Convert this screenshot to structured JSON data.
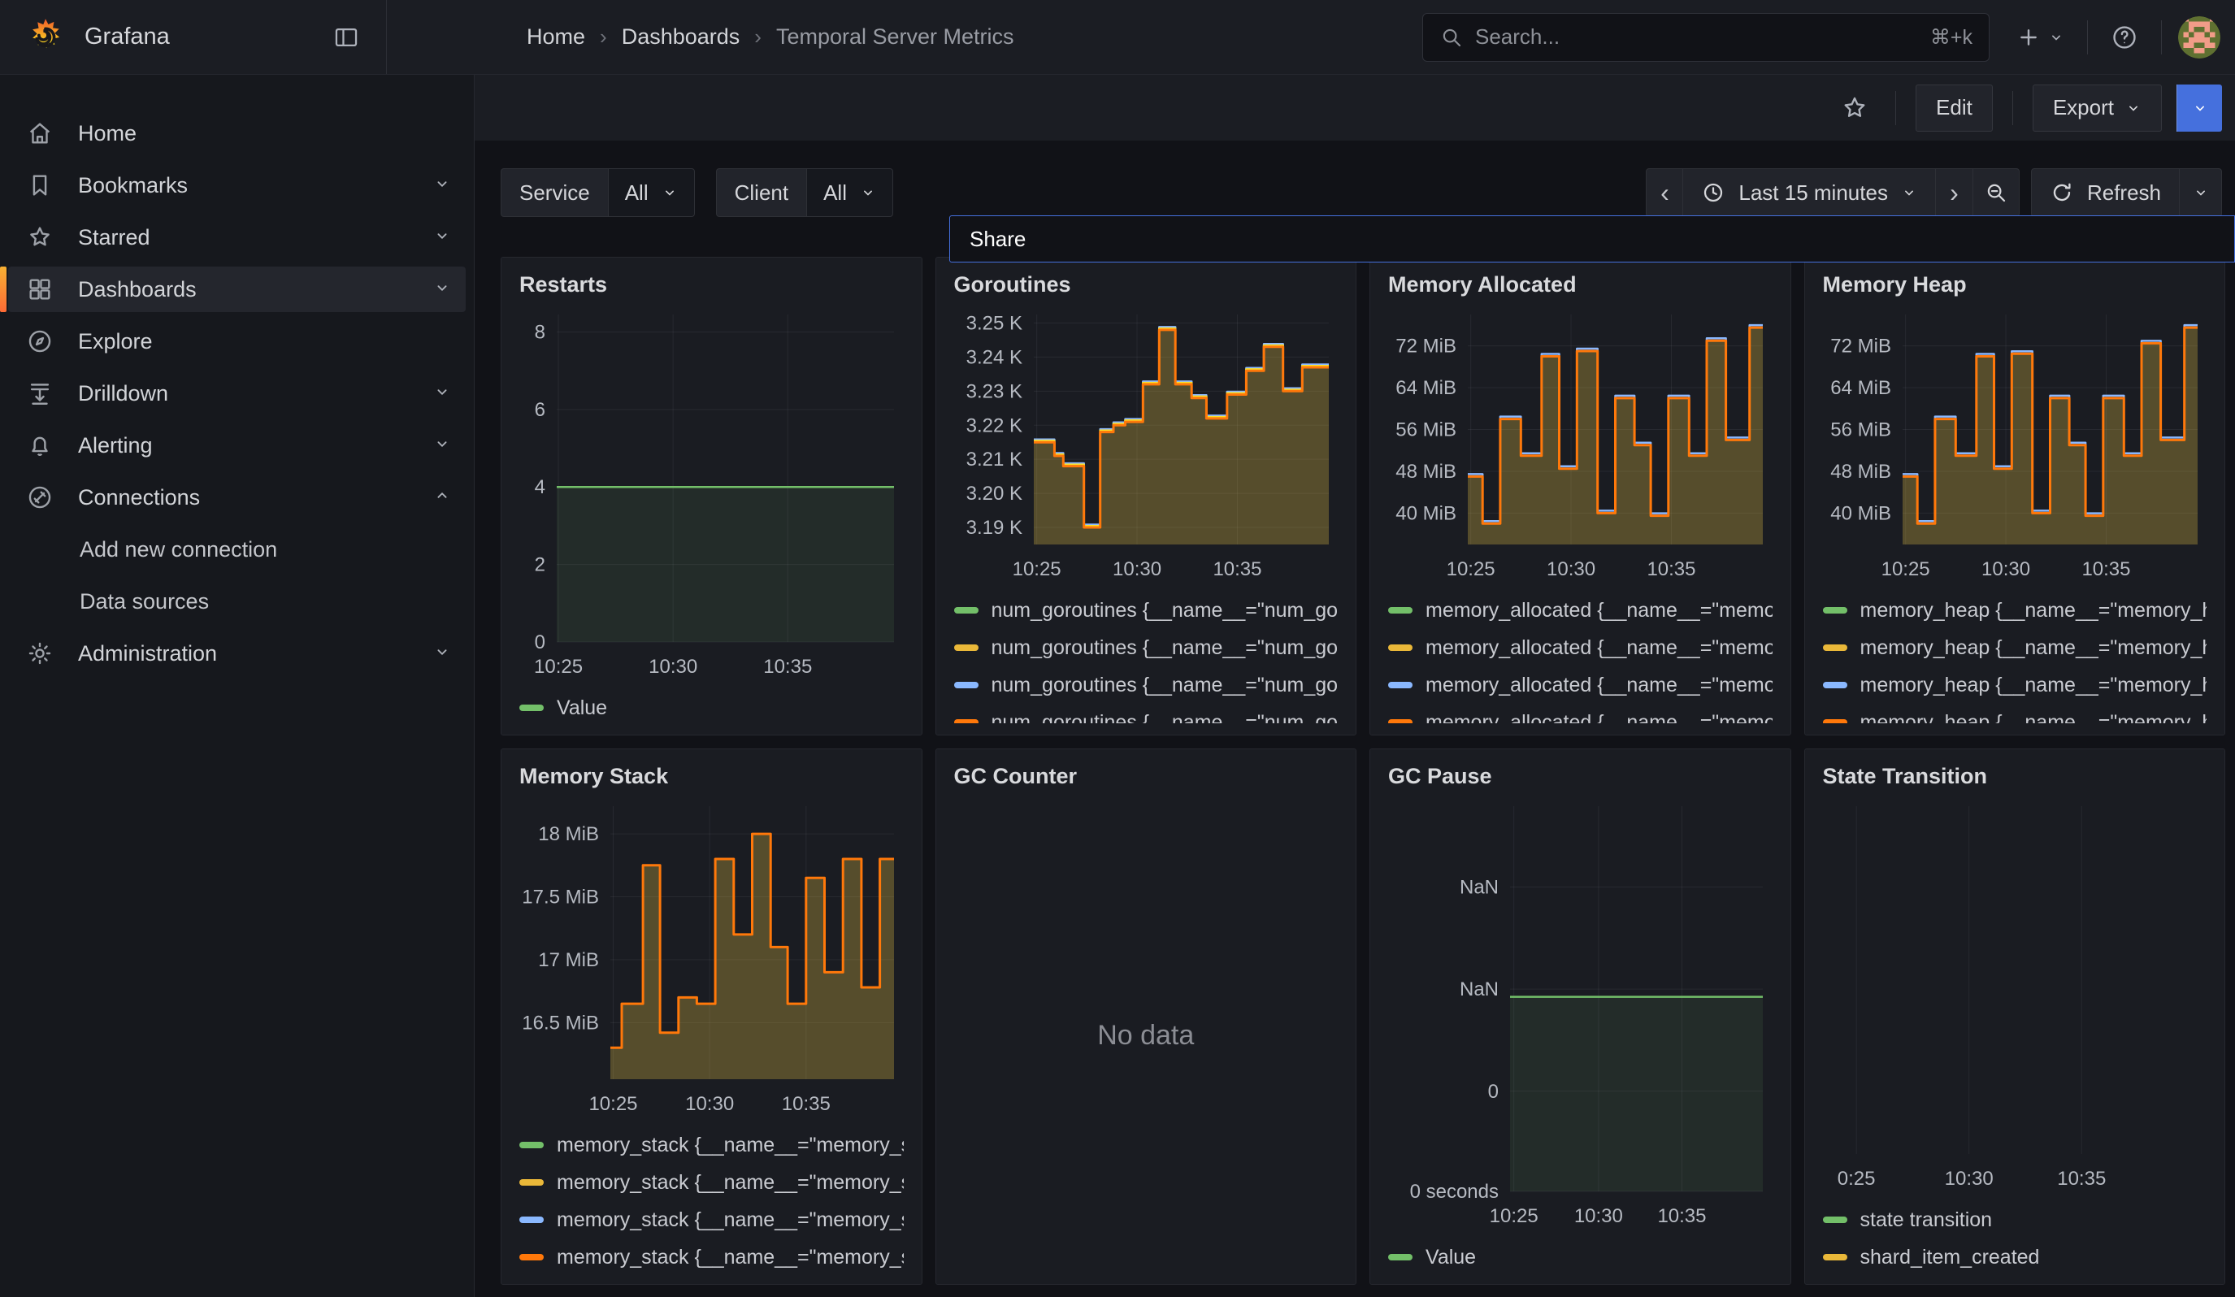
{
  "topbar": {
    "brand": "Grafana",
    "breadcrumb": {
      "items": [
        "Home",
        "Dashboards",
        "Temporal Server Metrics"
      ],
      "separator": "›"
    },
    "search": {
      "placeholder": "Search...",
      "shortcut": "⌘+k"
    }
  },
  "subheader": {
    "edit_label": "Edit",
    "export_label": "Export",
    "share_label": "Share"
  },
  "sidebar": {
    "items": [
      {
        "label": "Home",
        "icon": "home-icon",
        "chevron": null
      },
      {
        "label": "Bookmarks",
        "icon": "bookmark-icon",
        "chevron": "down"
      },
      {
        "label": "Starred",
        "icon": "star-icon",
        "chevron": "down"
      },
      {
        "label": "Dashboards",
        "icon": "grid-icon",
        "chevron": "down",
        "active": true
      },
      {
        "label": "Explore",
        "icon": "compass-icon",
        "chevron": null
      },
      {
        "label": "Drilldown",
        "icon": "drilldown-icon",
        "chevron": "down"
      },
      {
        "label": "Alerting",
        "icon": "bell-icon",
        "chevron": "down"
      },
      {
        "label": "Connections",
        "icon": "plug-icon",
        "chevron": "up"
      },
      {
        "label": "Add new connection",
        "sub": true
      },
      {
        "label": "Data sources",
        "sub": true
      },
      {
        "label": "Administration",
        "icon": "gear-icon",
        "chevron": "down"
      }
    ]
  },
  "filters": [
    {
      "label": "Service",
      "value": "All"
    },
    {
      "label": "Client",
      "value": "All"
    }
  ],
  "timebar": {
    "range_label": "Last 15 minutes",
    "refresh_label": "Refresh"
  },
  "colors": {
    "green": "#73BF69",
    "yellow": "#EAB839",
    "blue": "#8AB8FF",
    "orange": "#FF780A",
    "accent_blue": "#4570dd",
    "area_fill": "rgba(224,192,68,0.30)"
  },
  "panels": [
    {
      "title": "Restarts",
      "legend": [
        {
          "color": "#73BF69",
          "label": "Value"
        }
      ],
      "chart": {
        "type": "line",
        "ml": 46,
        "ymin": 0,
        "ymax": 8.45,
        "yticks": [
          {
            "v": 8,
            "label": "8"
          },
          {
            "v": 6,
            "label": "6"
          },
          {
            "v": 4,
            "label": "4"
          },
          {
            "v": 2,
            "label": "2"
          },
          {
            "v": 0,
            "label": "0"
          }
        ],
        "xticks": [
          {
            "f": 0.005,
            "label": "10:25"
          },
          {
            "f": 0.345,
            "label": "10:30"
          },
          {
            "f": 0.685,
            "label": "10:35"
          }
        ],
        "series": {
          "x": [
            0,
            1
          ],
          "values": [
            4
          ]
        },
        "fill": "rgba(115,191,105,0.10)",
        "layers": [
          {
            "color": "#73BF69",
            "dy": 0,
            "w": 2.5
          }
        ]
      }
    },
    {
      "title": "Goroutines",
      "legend": [
        {
          "color": "#73BF69",
          "label": "num_goroutines {__name__=\"num_go"
        },
        {
          "color": "#EAB839",
          "label": "num_goroutines {__name__=\"num_go"
        },
        {
          "color": "#8AB8FF",
          "label": "num_goroutines {__name__=\"num_go"
        },
        {
          "color": "#FF780A",
          "label": "num_goroutines {__name__=\"num_go"
        }
      ],
      "chart": {
        "type": "area-step",
        "ml": 98,
        "ymin": 3185,
        "ymax": 3252.5,
        "yticks": [
          {
            "v": 3250,
            "label": "3.25 K"
          },
          {
            "v": 3240,
            "label": "3.24 K"
          },
          {
            "v": 3230,
            "label": "3.23 K"
          },
          {
            "v": 3220,
            "label": "3.22 K"
          },
          {
            "v": 3210,
            "label": "3.21 K"
          },
          {
            "v": 3200,
            "label": "3.20 K"
          },
          {
            "v": 3190,
            "label": "3.19 K"
          }
        ],
        "xticks": [
          {
            "f": 0.01,
            "label": "10:25"
          },
          {
            "f": 0.35,
            "label": "10:30"
          },
          {
            "f": 0.69,
            "label": "10:35"
          }
        ],
        "series": {
          "x": [
            0,
            0.07,
            0.1,
            0.17,
            0.225,
            0.27,
            0.31,
            0.37,
            0.425,
            0.48,
            0.535,
            0.585,
            0.655,
            0.72,
            0.78,
            0.845,
            0.91,
            1
          ],
          "values": [
            3215,
            3211,
            3208,
            3190,
            3218,
            3220,
            3221,
            3232,
            3248,
            3232,
            3228,
            3222,
            3229,
            3236,
            3243,
            3230,
            3237
          ]
        },
        "fill": "rgba(224,192,68,0.30)",
        "layers": [
          {
            "color": "#8AB8FF",
            "dy": -3.5,
            "w": 2.5
          },
          {
            "color": "#FADE2A",
            "dy": -1.8,
            "w": 2.5
          },
          {
            "color": "#FF780A",
            "dy": 0,
            "w": 3
          }
        ]
      }
    },
    {
      "title": "Memory Allocated",
      "legend": [
        {
          "color": "#73BF69",
          "label": "memory_allocated {__name__=\"memo"
        },
        {
          "color": "#EAB839",
          "label": "memory_allocated {__name__=\"memo"
        },
        {
          "color": "#8AB8FF",
          "label": "memory_allocated {__name__=\"memo"
        },
        {
          "color": "#FF780A",
          "label": "memory_allocated {__name__=\"memo"
        }
      ],
      "chart": {
        "type": "area-step",
        "ml": 98,
        "ymin": 34,
        "ymax": 78,
        "yticks": [
          {
            "v": 72,
            "label": "72 MiB"
          },
          {
            "v": 64,
            "label": "64 MiB"
          },
          {
            "v": 56,
            "label": "56 MiB"
          },
          {
            "v": 48,
            "label": "48 MiB"
          },
          {
            "v": 40,
            "label": "40 MiB"
          }
        ],
        "xticks": [
          {
            "f": 0.01,
            "label": "10:25"
          },
          {
            "f": 0.35,
            "label": "10:30"
          },
          {
            "f": 0.69,
            "label": "10:35"
          }
        ],
        "series": {
          "x": [
            0,
            0.05,
            0.11,
            0.18,
            0.25,
            0.31,
            0.37,
            0.44,
            0.5,
            0.565,
            0.62,
            0.68,
            0.75,
            0.81,
            0.875,
            0.955,
            1
          ],
          "values": [
            47,
            38,
            58,
            51,
            70,
            48.5,
            71,
            40,
            62,
            53,
            39.5,
            62,
            51,
            73,
            54,
            75.5
          ]
        },
        "fill": "rgba(224,192,68,0.30)",
        "layers": [
          {
            "color": "#8AB8FF",
            "dy": -3,
            "w": 2.5
          },
          {
            "color": "#FF780A",
            "dy": 0,
            "w": 3
          }
        ]
      }
    },
    {
      "title": "Memory Heap",
      "legend": [
        {
          "color": "#73BF69",
          "label": "memory_heap {__name__=\"memory_h"
        },
        {
          "color": "#EAB839",
          "label": "memory_heap {__name__=\"memory_h"
        },
        {
          "color": "#8AB8FF",
          "label": "memory_heap {__name__=\"memory_h"
        },
        {
          "color": "#FF780A",
          "label": "memory_heap {__name__=\"memory_h"
        }
      ],
      "chart": {
        "type": "area-step",
        "ml": 98,
        "ymin": 34,
        "ymax": 78,
        "yticks": [
          {
            "v": 72,
            "label": "72 MiB"
          },
          {
            "v": 64,
            "label": "64 MiB"
          },
          {
            "v": 56,
            "label": "56 MiB"
          },
          {
            "v": 48,
            "label": "48 MiB"
          },
          {
            "v": 40,
            "label": "40 MiB"
          }
        ],
        "xticks": [
          {
            "f": 0.01,
            "label": "10:25"
          },
          {
            "f": 0.35,
            "label": "10:30"
          },
          {
            "f": 0.69,
            "label": "10:35"
          }
        ],
        "series": {
          "x": [
            0,
            0.05,
            0.11,
            0.18,
            0.25,
            0.31,
            0.37,
            0.44,
            0.5,
            0.565,
            0.62,
            0.68,
            0.75,
            0.81,
            0.875,
            0.955,
            1
          ],
          "values": [
            47,
            38,
            58,
            51,
            70,
            48.5,
            70.5,
            40,
            62,
            53,
            39.5,
            62,
            51,
            72.5,
            54,
            75.5
          ]
        },
        "fill": "rgba(224,192,68,0.30)",
        "layers": [
          {
            "color": "#8AB8FF",
            "dy": -3,
            "w": 2.5
          },
          {
            "color": "#FF780A",
            "dy": 0,
            "w": 3
          }
        ]
      }
    },
    {
      "title": "Memory Stack",
      "legend": [
        {
          "color": "#73BF69",
          "label": "memory_stack {__name__=\"memory_s"
        },
        {
          "color": "#EAB839",
          "label": "memory_stack {__name__=\"memory_s"
        },
        {
          "color": "#8AB8FF",
          "label": "memory_stack {__name__=\"memory_s"
        },
        {
          "color": "#FF780A",
          "label": "memory_stack {__name__=\"memory_s"
        }
      ],
      "chart": {
        "type": "area-step",
        "ml": 112,
        "ymin": 16.05,
        "ymax": 18.22,
        "yticks": [
          {
            "v": 18,
            "label": "18 MiB"
          },
          {
            "v": 17.5,
            "label": "17.5 MiB"
          },
          {
            "v": 17,
            "label": "17 MiB"
          },
          {
            "v": 16.5,
            "label": "16.5 MiB"
          }
        ],
        "xticks": [
          {
            "f": 0.01,
            "label": "10:25"
          },
          {
            "f": 0.35,
            "label": "10:30"
          },
          {
            "f": 0.69,
            "label": "10:35"
          }
        ],
        "series": {
          "x": [
            0,
            0.04,
            0.115,
            0.175,
            0.24,
            0.305,
            0.37,
            0.435,
            0.5,
            0.565,
            0.625,
            0.69,
            0.755,
            0.82,
            0.885,
            0.95,
            1
          ],
          "values": [
            16.3,
            16.65,
            17.75,
            16.42,
            16.7,
            16.65,
            17.8,
            17.2,
            18.0,
            17.1,
            16.65,
            17.65,
            16.9,
            17.8,
            16.78,
            17.8
          ]
        },
        "fill": "rgba(224,192,68,0.30)",
        "layers": [
          {
            "color": "#FF780A",
            "dy": 0,
            "w": 3
          }
        ]
      }
    },
    {
      "title": "GC Counter",
      "no_data": "No data",
      "legend": [],
      "chart": null
    },
    {
      "title": "GC Pause",
      "legend": [
        {
          "color": "#73BF69",
          "label": "Value"
        }
      ],
      "chart": {
        "type": "line",
        "ml": 150,
        "ymin": 0,
        "ymax": 1,
        "yticks": [
          {
            "v": 0.79,
            "label": "NaN"
          },
          {
            "v": 0.525,
            "label": "NaN"
          },
          {
            "v": 0.26,
            "label": "0"
          },
          {
            "v": 0,
            "label": "0 seconds"
          }
        ],
        "xticks": [
          {
            "f": 0.015,
            "label": "10:25"
          },
          {
            "f": 0.35,
            "label": "10:30"
          },
          {
            "f": 0.68,
            "label": "10:35"
          }
        ],
        "series": {
          "x": [
            0,
            1
          ],
          "values": [
            0.505
          ]
        },
        "fill": "rgba(115,191,105,0.10)",
        "layers": [
          {
            "color": "#73BF69",
            "dy": 0,
            "w": 2.5
          }
        ]
      }
    },
    {
      "title": "State Transition",
      "legend": [
        {
          "color": "#73BF69",
          "label": "state transition"
        },
        {
          "color": "#EAB839",
          "label": "shard_item_created"
        }
      ],
      "chart": {
        "type": "empty",
        "ml": 26,
        "mr": 14,
        "yticks": [],
        "xticks": [
          {
            "f": 0.035,
            "label": "0:25"
          },
          {
            "f": 0.355,
            "label": "10:30"
          },
          {
            "f": 0.675,
            "label": "10:35"
          }
        ]
      }
    }
  ]
}
